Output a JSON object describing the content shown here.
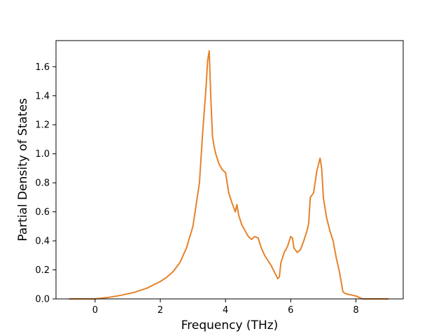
{
  "chart_data": {
    "type": "line",
    "title": "",
    "xlabel": "Frequency (THz)",
    "ylabel": "Partial Density of States",
    "xlim": [
      -1.2,
      9.45
    ],
    "ylim": [
      0.0,
      1.78
    ],
    "xticks": [
      0,
      2,
      4,
      6,
      8
    ],
    "yticks": [
      0.0,
      0.2,
      0.4,
      0.6,
      0.8,
      1.0,
      1.2,
      1.4,
      1.6
    ],
    "grid": false,
    "legend": "none",
    "series": [
      {
        "color": "#e6822a",
        "x": [
          -0.8,
          -0.4,
          0.0,
          0.4,
          0.8,
          1.2,
          1.6,
          2.0,
          2.2,
          2.4,
          2.6,
          2.8,
          3.0,
          3.2,
          3.3,
          3.4,
          3.45,
          3.5,
          3.55,
          3.6,
          3.65,
          3.7,
          3.8,
          3.9,
          4.0,
          4.05,
          4.1,
          4.2,
          4.3,
          4.35,
          4.4,
          4.5,
          4.6,
          4.7,
          4.8,
          4.9,
          5.0,
          5.1,
          5.2,
          5.4,
          5.6,
          5.65,
          5.7,
          5.8,
          5.9,
          6.0,
          6.05,
          6.1,
          6.2,
          6.3,
          6.4,
          6.5,
          6.55,
          6.6,
          6.7,
          6.8,
          6.9,
          6.95,
          7.0,
          7.1,
          7.2,
          7.3,
          7.4,
          7.5,
          7.6,
          7.65,
          7.7,
          7.8,
          7.9,
          8.0,
          8.1,
          8.2,
          8.4,
          8.6,
          8.8,
          9.0
        ],
        "y": [
          0.0,
          0.0,
          0.0,
          0.01,
          0.025,
          0.045,
          0.075,
          0.12,
          0.15,
          0.19,
          0.25,
          0.35,
          0.5,
          0.8,
          1.15,
          1.45,
          1.64,
          1.71,
          1.38,
          1.12,
          1.05,
          1.0,
          0.93,
          0.89,
          0.87,
          0.8,
          0.73,
          0.66,
          0.6,
          0.65,
          0.58,
          0.51,
          0.47,
          0.43,
          0.41,
          0.43,
          0.42,
          0.35,
          0.3,
          0.23,
          0.14,
          0.15,
          0.25,
          0.32,
          0.36,
          0.43,
          0.42,
          0.35,
          0.32,
          0.34,
          0.4,
          0.47,
          0.52,
          0.7,
          0.73,
          0.88,
          0.97,
          0.9,
          0.7,
          0.56,
          0.47,
          0.4,
          0.28,
          0.18,
          0.05,
          0.04,
          0.035,
          0.03,
          0.025,
          0.02,
          0.01,
          0.0,
          0.0,
          0.0,
          0.0,
          0.0
        ]
      }
    ]
  }
}
